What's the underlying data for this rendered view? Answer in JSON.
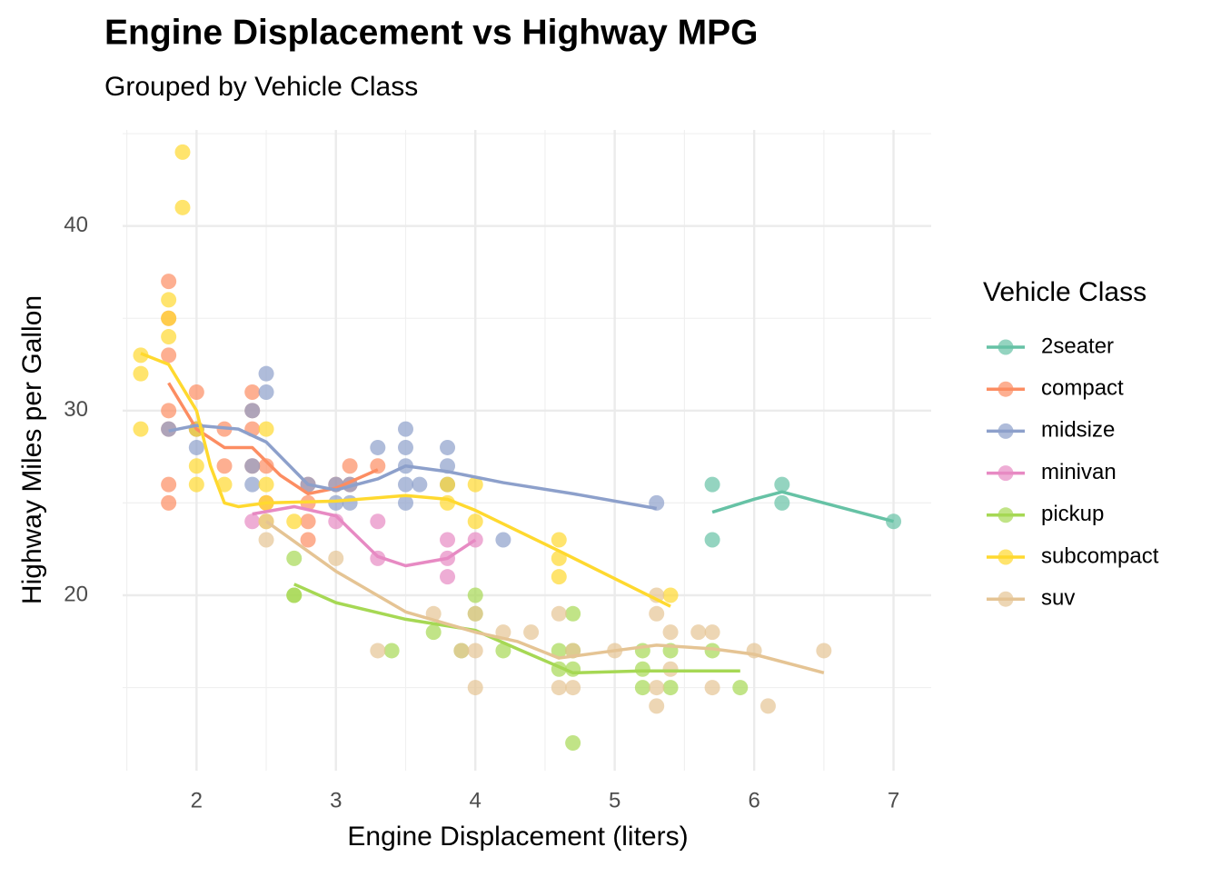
{
  "chart_data": {
    "type": "scatter",
    "title": "Engine Displacement vs Highway MPG",
    "subtitle": "Grouped by Vehicle Class",
    "x_label": "Engine Displacement (liters)",
    "y_label": "Highway Miles per Gallon",
    "legend_title": "Vehicle Class",
    "legend_position": "right",
    "grid": true,
    "minor_grid": true,
    "xlim": [
      1.47,
      7.27
    ],
    "xticks": [
      2,
      3,
      4,
      5,
      6,
      7
    ],
    "ylim": [
      10.5,
      45.2
    ],
    "yticks": [
      20,
      30,
      40
    ],
    "series": [
      {
        "name": "2seater",
        "color": "#66C2A5",
        "x": [
          5.7,
          5.7,
          6.2,
          6.2,
          7.0
        ],
        "values": [
          26,
          23,
          26,
          25,
          24
        ],
        "smooth_x": [
          5.7,
          6.0,
          6.2,
          6.5,
          7.0
        ],
        "smooth_values": [
          24.5,
          25.2,
          25.6,
          25.0,
          24.0
        ]
      },
      {
        "name": "compact",
        "color": "#FC8D62",
        "x": [
          1.8,
          1.8,
          1.8,
          1.8,
          1.8,
          1.8,
          1.8,
          2.0,
          2.0,
          2.2,
          2.2,
          2.4,
          2.4,
          2.4,
          2.4,
          2.5,
          2.5,
          2.8,
          2.8,
          2.8,
          2.8,
          3.0,
          3.1,
          3.1,
          3.3
        ],
        "values": [
          37,
          35,
          33,
          30,
          29,
          26,
          25,
          31,
          29,
          27,
          29,
          31,
          30,
          29,
          27,
          27,
          25,
          26,
          25,
          24,
          23,
          26,
          27,
          26,
          27
        ],
        "smooth_x": [
          1.8,
          2.0,
          2.2,
          2.4,
          2.6,
          2.8,
          3.0,
          3.3
        ],
        "smooth_values": [
          31.5,
          29.0,
          28.0,
          28.0,
          26.5,
          25.5,
          25.8,
          26.8
        ]
      },
      {
        "name": "midsize",
        "color": "#8DA0CB",
        "x": [
          1.8,
          2.0,
          2.0,
          2.4,
          2.4,
          2.4,
          2.5,
          2.5,
          2.8,
          3.0,
          3.0,
          3.1,
          3.1,
          3.3,
          3.5,
          3.5,
          3.5,
          3.5,
          3.5,
          3.6,
          3.8,
          3.8,
          3.8,
          4.2,
          5.3
        ],
        "values": [
          29,
          29,
          28,
          30,
          27,
          26,
          32,
          31,
          26,
          26,
          25,
          26,
          25,
          28,
          29,
          28,
          27,
          26,
          25,
          26,
          28,
          27,
          26,
          23,
          25
        ],
        "smooth_x": [
          1.8,
          2.0,
          2.3,
          2.5,
          2.8,
          3.0,
          3.3,
          3.5,
          3.8,
          4.2,
          4.7,
          5.3
        ],
        "smooth_values": [
          28.9,
          29.2,
          29.0,
          28.3,
          26.0,
          25.7,
          26.3,
          27.0,
          26.7,
          26.1,
          25.5,
          24.7
        ]
      },
      {
        "name": "minivan",
        "color": "#E78AC3",
        "x": [
          2.4,
          3.0,
          3.3,
          3.3,
          3.8,
          3.8,
          3.8,
          4.0
        ],
        "values": [
          24,
          24,
          24,
          22,
          23,
          22,
          21,
          23
        ],
        "smooth_x": [
          2.4,
          2.7,
          3.0,
          3.3,
          3.5,
          3.8,
          4.0
        ],
        "smooth_values": [
          24.4,
          24.8,
          24.3,
          22.1,
          21.6,
          22.0,
          23.0
        ]
      },
      {
        "name": "pickup",
        "color": "#A6D854",
        "x": [
          2.7,
          2.7,
          2.7,
          3.4,
          3.7,
          3.9,
          4.0,
          4.0,
          4.2,
          4.6,
          4.6,
          4.7,
          4.7,
          4.7,
          4.7,
          5.2,
          5.2,
          5.2,
          5.4,
          5.4,
          5.7,
          5.9
        ],
        "values": [
          22,
          20,
          20,
          17,
          18,
          17,
          20,
          19,
          17,
          17,
          16,
          17,
          16,
          12,
          19,
          17,
          16,
          15,
          17,
          15,
          17,
          15
        ],
        "smooth_x": [
          2.7,
          3.0,
          3.5,
          4.0,
          4.3,
          4.7,
          5.2,
          5.9
        ],
        "smooth_values": [
          20.6,
          19.6,
          18.7,
          18.1,
          17.1,
          15.8,
          15.9,
          15.9
        ]
      },
      {
        "name": "subcompact",
        "color": "#FFD92F",
        "x": [
          1.6,
          1.6,
          1.6,
          1.8,
          1.8,
          1.8,
          1.9,
          1.9,
          2.0,
          2.0,
          2.0,
          2.2,
          2.5,
          2.5,
          2.5,
          2.5,
          2.7,
          3.8,
          3.8,
          4.0,
          4.0,
          4.6,
          4.6,
          4.6,
          5.4
        ],
        "values": [
          33,
          32,
          29,
          36,
          35,
          34,
          44,
          41,
          29,
          27,
          26,
          26,
          29,
          26,
          25,
          24,
          24,
          26,
          25,
          26,
          24,
          23,
          22,
          21,
          20
        ],
        "smooth_x": [
          1.6,
          1.8,
          2.0,
          2.1,
          2.2,
          2.3,
          2.5,
          3.0,
          3.5,
          3.8,
          4.0,
          4.6,
          5.4
        ],
        "smooth_values": [
          33.1,
          32.5,
          30.0,
          27.0,
          25.0,
          24.8,
          25.0,
          25.1,
          25.4,
          25.2,
          24.6,
          22.4,
          19.4
        ]
      },
      {
        "name": "suv",
        "color": "#E5C494",
        "x": [
          2.5,
          2.5,
          3.0,
          3.3,
          3.7,
          3.9,
          4.0,
          4.0,
          4.0,
          4.2,
          4.4,
          4.6,
          4.6,
          4.7,
          4.7,
          5.0,
          5.3,
          5.3,
          5.3,
          5.3,
          5.4,
          5.4,
          5.6,
          5.7,
          5.7,
          6.0,
          6.1,
          6.5
        ],
        "values": [
          24,
          23,
          22,
          17,
          19,
          17,
          19,
          17,
          15,
          18,
          18,
          19,
          15,
          17,
          15,
          17,
          20,
          19,
          15,
          14,
          18,
          16,
          18,
          18,
          15,
          17,
          14,
          17
        ],
        "smooth_x": [
          2.5,
          3.0,
          3.5,
          4.0,
          4.3,
          4.6,
          5.0,
          5.3,
          5.7,
          6.0,
          6.5
        ],
        "smooth_values": [
          24.0,
          21.3,
          19.1,
          18.0,
          17.5,
          16.6,
          17.0,
          17.3,
          17.1,
          16.8,
          15.8
        ]
      }
    ]
  }
}
